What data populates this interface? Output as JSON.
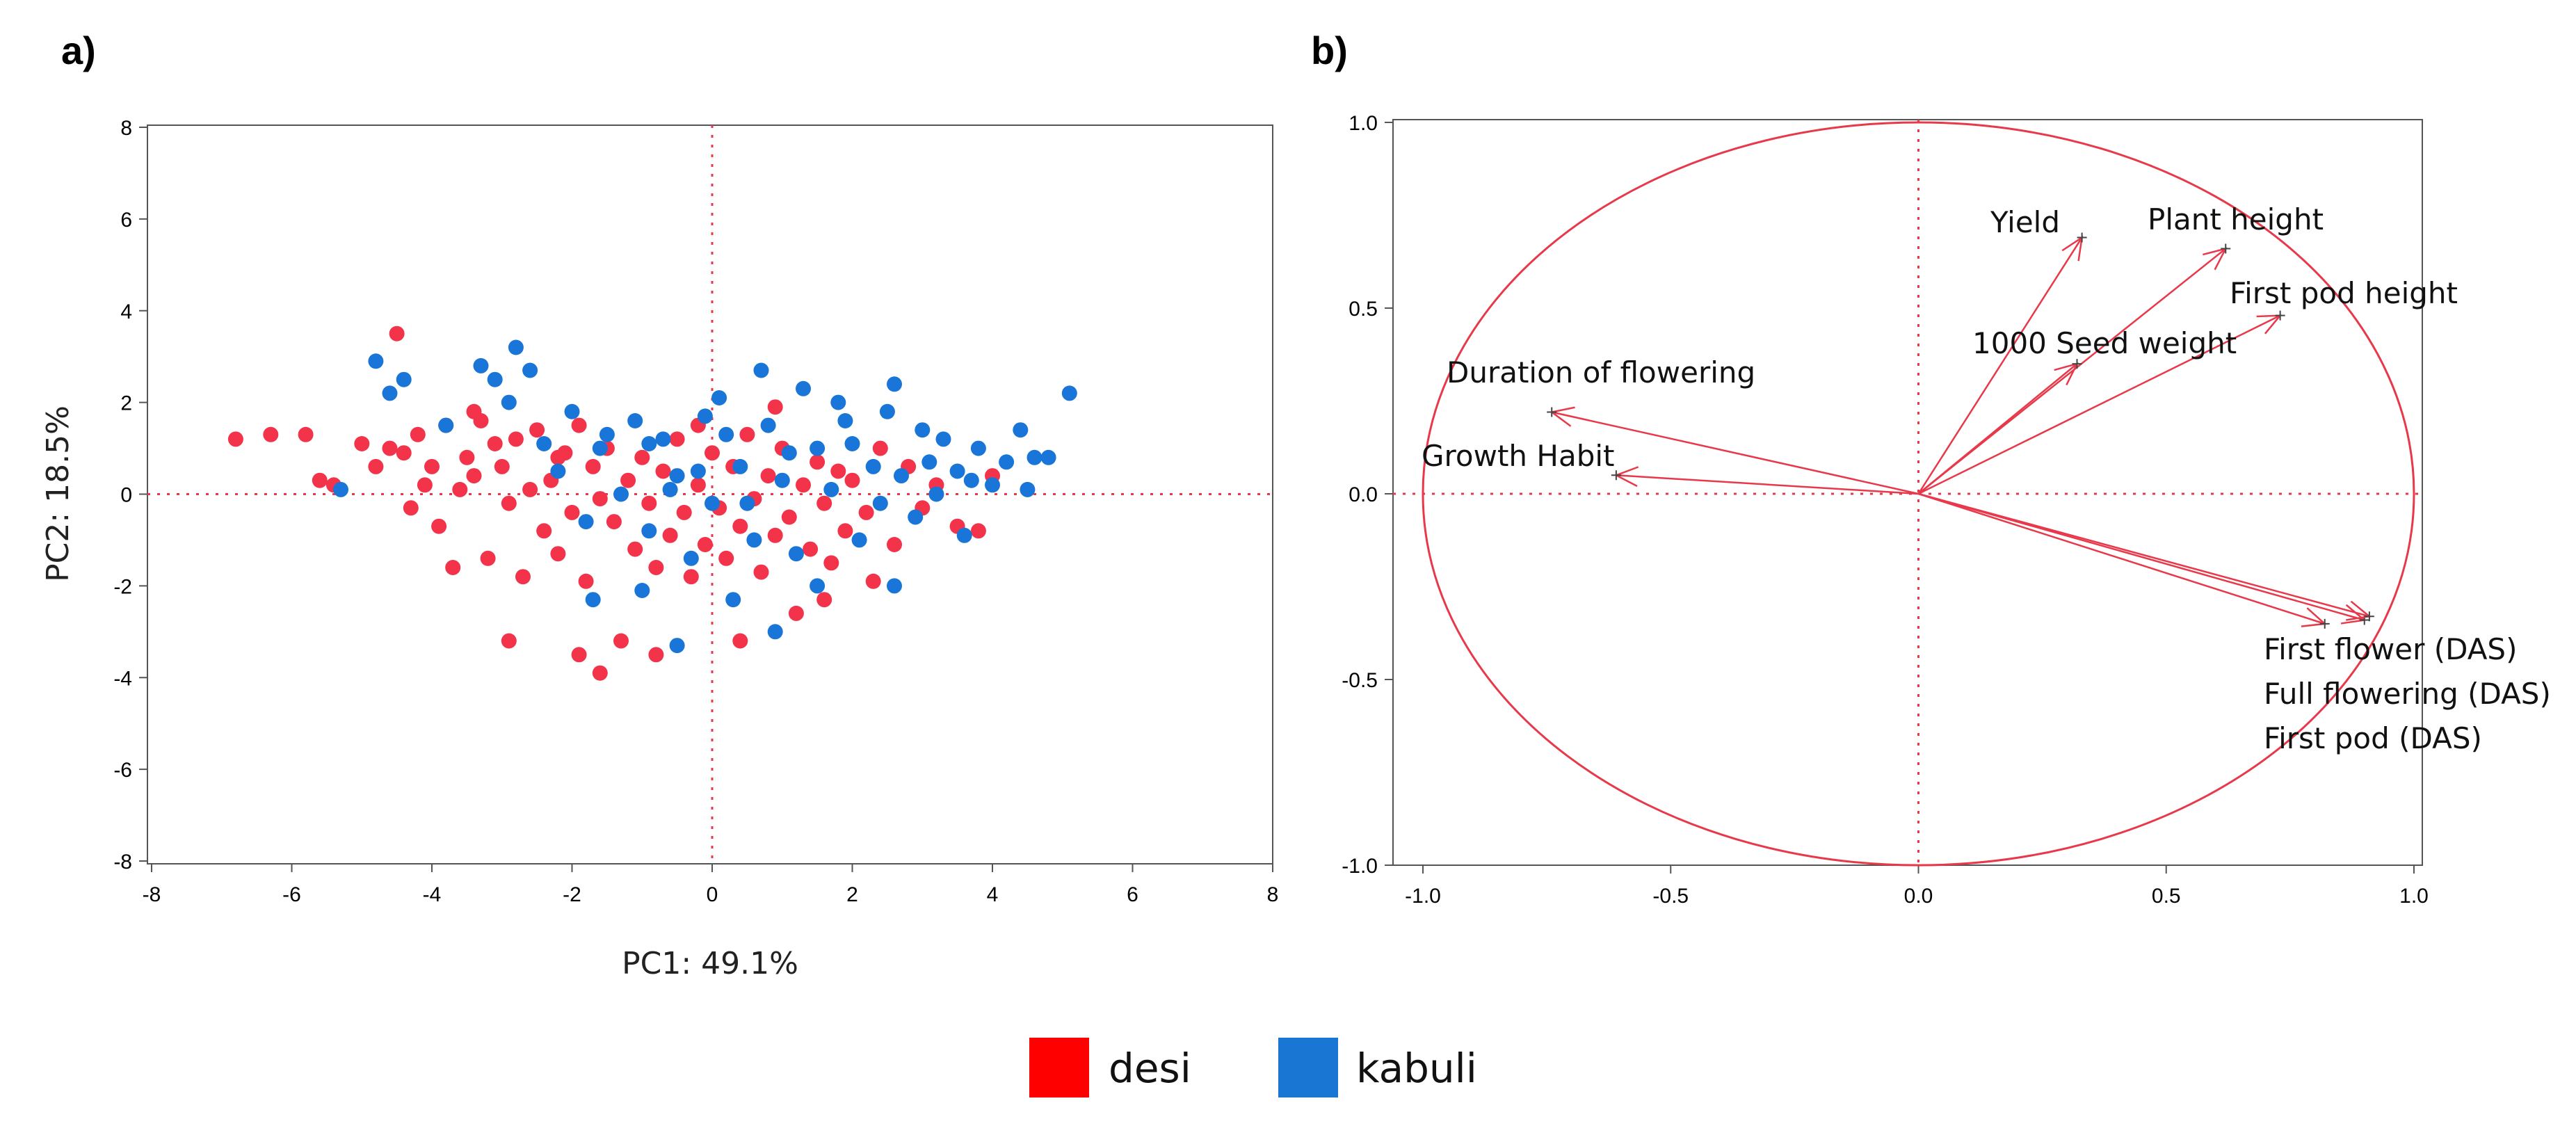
{
  "colors": {
    "desi": "#f2334a",
    "kabuli": "#1976d8",
    "loading": "#e8394b",
    "legend_desi": "#ff0000",
    "legend_kabuli": "#1976d2"
  },
  "legend": {
    "desi": "desi",
    "kabuli": "kabuli"
  },
  "chart_data": [
    {
      "type": "scatter",
      "panel_label": "a)",
      "xlabel": "PC1: 49.1%",
      "ylabel": "PC2: 18.5%",
      "xlim": [
        -8,
        8
      ],
      "ylim": [
        -8,
        8
      ],
      "xticks": [
        -8,
        -6,
        -4,
        -2,
        0,
        2,
        4,
        6,
        8
      ],
      "yticks": [
        -8,
        -6,
        -4,
        -2,
        0,
        2,
        4,
        6,
        8
      ],
      "reference_lines": [
        {
          "axis": "x",
          "value": 0
        },
        {
          "axis": "y",
          "value": 0
        }
      ],
      "grid": false,
      "series": [
        {
          "name": "desi",
          "points": [
            [
              -6.8,
              1.2
            ],
            [
              -6.3,
              1.3
            ],
            [
              -5.8,
              1.3
            ],
            [
              -5.6,
              0.3
            ],
            [
              -5.4,
              0.2
            ],
            [
              -5.0,
              1.1
            ],
            [
              -4.8,
              0.6
            ],
            [
              -4.6,
              1.0
            ],
            [
              -4.5,
              3.5
            ],
            [
              -4.4,
              0.9
            ],
            [
              -4.3,
              -0.3
            ],
            [
              -4.2,
              1.3
            ],
            [
              -4.1,
              0.2
            ],
            [
              -4.0,
              0.6
            ],
            [
              -3.9,
              -0.7
            ],
            [
              -3.8,
              1.5
            ],
            [
              -3.7,
              -1.6
            ],
            [
              -3.6,
              0.1
            ],
            [
              -3.5,
              0.8
            ],
            [
              -3.4,
              0.4
            ],
            [
              -3.3,
              1.6
            ],
            [
              -3.2,
              -1.4
            ],
            [
              -3.1,
              1.1
            ],
            [
              -3.0,
              0.6
            ],
            [
              -2.9,
              -0.2
            ],
            [
              -2.8,
              1.2
            ],
            [
              -2.7,
              -1.8
            ],
            [
              -2.6,
              0.1
            ],
            [
              -2.5,
              1.4
            ],
            [
              -2.4,
              -0.8
            ],
            [
              -2.3,
              0.3
            ],
            [
              -2.2,
              -1.3
            ],
            [
              -2.1,
              0.9
            ],
            [
              -2.0,
              -0.4
            ],
            [
              -1.9,
              1.5
            ],
            [
              -1.8,
              -1.9
            ],
            [
              -1.7,
              0.6
            ],
            [
              -1.6,
              -0.1
            ],
            [
              -1.5,
              1.0
            ],
            [
              -1.4,
              -0.6
            ],
            [
              -1.3,
              -3.2
            ],
            [
              -1.2,
              0.3
            ],
            [
              -1.1,
              -1.2
            ],
            [
              -1.0,
              0.8
            ],
            [
              -0.9,
              -0.2
            ],
            [
              -0.8,
              -1.6
            ],
            [
              -0.7,
              0.5
            ],
            [
              -0.6,
              -0.9
            ],
            [
              -0.5,
              1.2
            ],
            [
              -0.4,
              -0.4
            ],
            [
              -0.3,
              -1.8
            ],
            [
              -0.2,
              0.2
            ],
            [
              -0.1,
              -1.1
            ],
            [
              0.0,
              0.9
            ],
            [
              0.1,
              -0.3
            ],
            [
              0.2,
              -1.4
            ],
            [
              0.3,
              0.6
            ],
            [
              0.4,
              -0.7
            ],
            [
              0.5,
              1.3
            ],
            [
              0.6,
              -0.1
            ],
            [
              0.7,
              -1.7
            ],
            [
              0.8,
              0.4
            ],
            [
              0.9,
              -0.9
            ],
            [
              1.0,
              1.0
            ],
            [
              1.1,
              -0.5
            ],
            [
              1.2,
              -2.6
            ],
            [
              1.3,
              0.2
            ],
            [
              1.4,
              -1.2
            ],
            [
              1.5,
              0.7
            ],
            [
              1.6,
              -0.2
            ],
            [
              1.7,
              -1.5
            ],
            [
              1.8,
              0.5
            ],
            [
              1.9,
              -0.8
            ],
            [
              2.0,
              0.3
            ],
            [
              2.2,
              -0.4
            ],
            [
              2.4,
              1.0
            ],
            [
              2.6,
              -1.1
            ],
            [
              2.8,
              0.6
            ],
            [
              3.0,
              -0.3
            ],
            [
              3.2,
              0.2
            ],
            [
              3.5,
              -0.7
            ],
            [
              3.8,
              -0.8
            ],
            [
              4.0,
              0.4
            ],
            [
              -1.9,
              -3.5
            ],
            [
              -1.6,
              -3.9
            ],
            [
              -0.8,
              -3.5
            ],
            [
              0.4,
              -3.2
            ],
            [
              -2.9,
              -3.2
            ],
            [
              1.6,
              -2.3
            ],
            [
              2.3,
              -1.9
            ],
            [
              -3.4,
              1.8
            ],
            [
              -2.2,
              0.8
            ],
            [
              -0.2,
              1.5
            ],
            [
              0.9,
              1.9
            ]
          ]
        },
        {
          "name": "kabuli",
          "points": [
            [
              -5.3,
              0.1
            ],
            [
              -4.8,
              2.9
            ],
            [
              -4.6,
              2.2
            ],
            [
              -4.4,
              2.5
            ],
            [
              -3.8,
              1.5
            ],
            [
              -3.3,
              2.8
            ],
            [
              -3.1,
              2.5
            ],
            [
              -2.9,
              2.0
            ],
            [
              -2.8,
              3.2
            ],
            [
              -2.6,
              2.7
            ],
            [
              -2.4,
              1.1
            ],
            [
              -2.2,
              0.5
            ],
            [
              -2.0,
              1.8
            ],
            [
              -1.8,
              -0.6
            ],
            [
              -1.7,
              -2.3
            ],
            [
              -1.5,
              1.3
            ],
            [
              -1.3,
              0.0
            ],
            [
              -1.1,
              1.6
            ],
            [
              -0.9,
              -0.8
            ],
            [
              -0.7,
              1.2
            ],
            [
              -0.5,
              0.4
            ],
            [
              -0.3,
              -1.4
            ],
            [
              -0.1,
              1.7
            ],
            [
              0.0,
              -0.2
            ],
            [
              0.2,
              1.3
            ],
            [
              0.4,
              0.6
            ],
            [
              0.6,
              -1.0
            ],
            [
              0.7,
              2.7
            ],
            [
              0.8,
              1.5
            ],
            [
              1.0,
              0.3
            ],
            [
              1.2,
              -1.3
            ],
            [
              1.3,
              2.3
            ],
            [
              1.5,
              1.0
            ],
            [
              1.7,
              0.1
            ],
            [
              1.9,
              1.6
            ],
            [
              2.1,
              -1.0
            ],
            [
              2.3,
              0.6
            ],
            [
              2.5,
              1.8
            ],
            [
              2.6,
              2.4
            ],
            [
              2.7,
              0.4
            ],
            [
              2.9,
              -0.5
            ],
            [
              3.0,
              1.4
            ],
            [
              3.2,
              0.0
            ],
            [
              3.3,
              1.2
            ],
            [
              3.5,
              0.5
            ],
            [
              3.6,
              -0.9
            ],
            [
              3.8,
              1.0
            ],
            [
              4.0,
              0.2
            ],
            [
              4.2,
              0.7
            ],
            [
              4.4,
              1.4
            ],
            [
              4.6,
              0.8
            ],
            [
              4.8,
              0.8
            ],
            [
              5.1,
              2.2
            ],
            [
              2.6,
              -2.0
            ],
            [
              -0.5,
              -3.3
            ],
            [
              0.9,
              -3.0
            ],
            [
              -1.0,
              -2.1
            ],
            [
              0.3,
              -2.3
            ],
            [
              1.5,
              -2.0
            ],
            [
              -0.2,
              0.5
            ],
            [
              0.5,
              -0.2
            ],
            [
              1.1,
              0.9
            ],
            [
              -0.6,
              0.1
            ],
            [
              2.0,
              1.1
            ],
            [
              3.1,
              0.7
            ],
            [
              3.7,
              0.3
            ],
            [
              4.5,
              0.1
            ],
            [
              -1.6,
              1.0
            ],
            [
              0.1,
              2.1
            ],
            [
              1.8,
              2.0
            ],
            [
              2.4,
              -0.2
            ],
            [
              -0.9,
              1.1
            ]
          ]
        }
      ]
    },
    {
      "type": "vector",
      "panel_label": "b)",
      "xlim": [
        -1.0,
        1.0
      ],
      "ylim": [
        -1.0,
        1.0
      ],
      "xticks": [
        "-1.0",
        "-0.5",
        "0.0",
        "0.5",
        "1.0"
      ],
      "yticks": [
        "-1.0",
        "-0.5",
        "0.0",
        "0.5",
        "1.0"
      ],
      "unit_circle": true,
      "reference_lines": [
        {
          "axis": "x",
          "value": 0
        },
        {
          "axis": "y",
          "value": 0
        }
      ],
      "grid": false,
      "loadings": [
        {
          "label": "Yield",
          "x": 0.33,
          "y": 0.69
        },
        {
          "label": "Plant height",
          "x": 0.62,
          "y": 0.66
        },
        {
          "label": "First pod height",
          "x": 0.73,
          "y": 0.48
        },
        {
          "label": "1000 Seed weight",
          "x": 0.32,
          "y": 0.35
        },
        {
          "label": "Duration of flowering",
          "x": -0.74,
          "y": 0.22
        },
        {
          "label": "Growth Habit",
          "x": -0.61,
          "y": 0.05
        },
        {
          "label": "First flower (DAS)",
          "x": 0.82,
          "y": -0.35
        },
        {
          "label": "Full flowering (DAS)",
          "x": 0.9,
          "y": -0.34
        },
        {
          "label": "First pod (DAS)",
          "x": 0.91,
          "y": -0.33
        }
      ]
    }
  ]
}
